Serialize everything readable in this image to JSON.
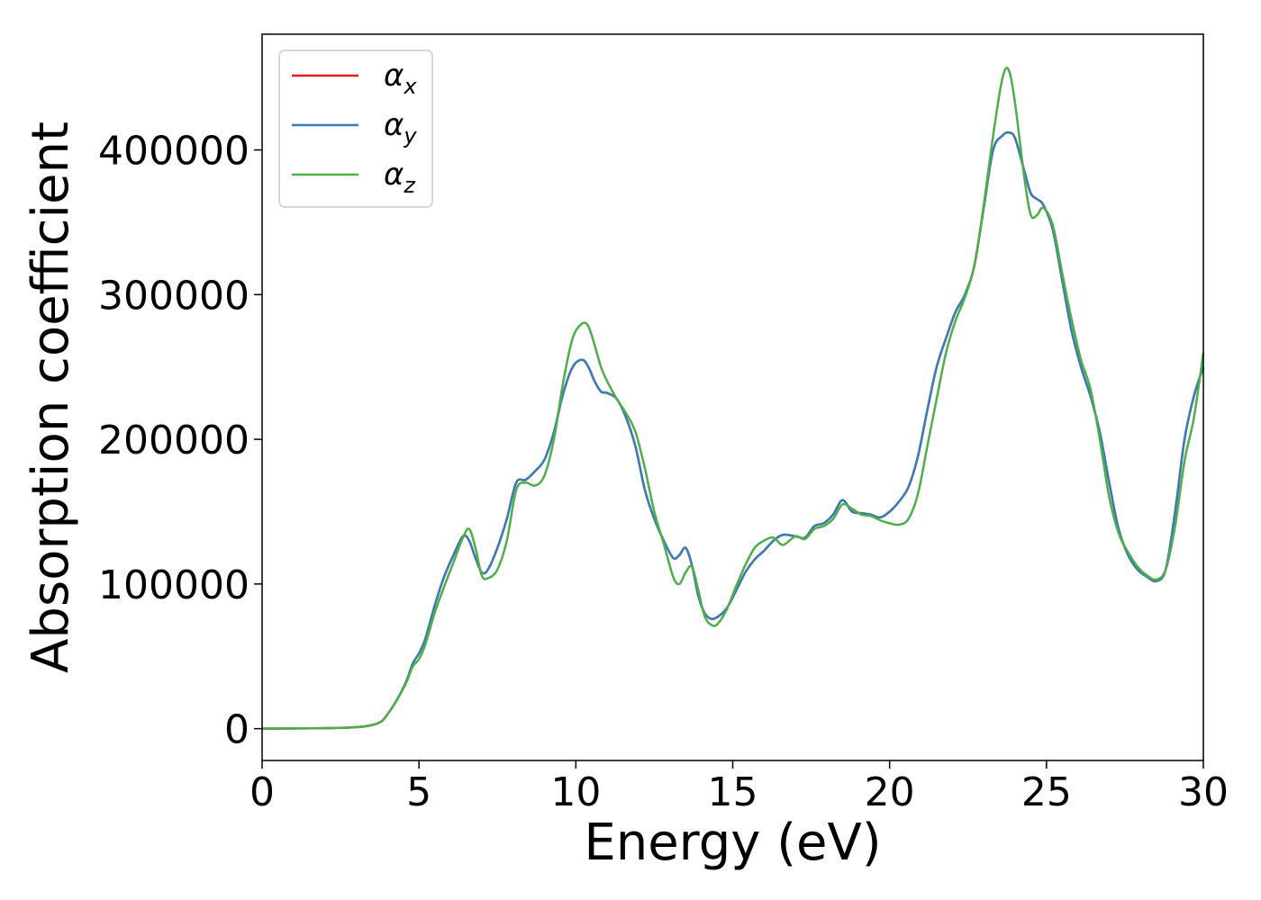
{
  "chart_data": {
    "type": "line",
    "title": "",
    "xlabel": "Energy (eV)",
    "ylabel": "Absorption coefficient",
    "xlim": [
      0,
      30
    ],
    "ylim": [
      -22000,
      480000
    ],
    "xticks": [
      0,
      5,
      10,
      15,
      20,
      25,
      30
    ],
    "yticks": [
      0,
      100000,
      200000,
      300000,
      400000
    ],
    "grid": false,
    "legend_position": "top-left",
    "series": [
      {
        "name": "α",
        "name_subscript": "x",
        "color": "#e41a1c",
        "x": [
          0,
          2,
          3,
          3.5,
          3.8,
          4.0,
          4.3,
          4.6,
          4.8,
          5.0,
          5.2,
          5.5,
          5.8,
          6.1,
          6.4,
          6.6,
          6.8,
          7.0,
          7.2,
          7.5,
          7.8,
          8.1,
          8.4,
          8.7,
          9.0,
          9.3,
          9.6,
          9.9,
          10.2,
          10.4,
          10.6,
          10.8,
          11.0,
          11.3,
          11.6,
          11.9,
          12.2,
          12.5,
          12.8,
          13.1,
          13.3,
          13.5,
          13.7,
          13.9,
          14.1,
          14.3,
          14.5,
          14.8,
          15.1,
          15.4,
          15.7,
          16.0,
          16.3,
          16.6,
          17.0,
          17.3,
          17.6,
          17.9,
          18.2,
          18.5,
          18.8,
          19.1,
          19.4,
          19.7,
          20.0,
          20.3,
          20.6,
          20.9,
          21.2,
          21.5,
          21.8,
          22.1,
          22.4,
          22.7,
          23.0,
          23.3,
          23.6,
          23.8,
          24.0,
          24.3,
          24.5,
          24.7,
          24.9,
          25.2,
          25.5,
          25.8,
          26.1,
          26.4,
          26.7,
          27.0,
          27.3,
          27.6,
          27.9,
          28.2,
          28.5,
          28.8,
          29.1,
          29.4,
          29.7,
          30.0
        ],
        "y": [
          0,
          300,
          1000,
          2500,
          5000,
          10000,
          20000,
          33000,
          45000,
          52000,
          62000,
          85000,
          105000,
          120000,
          133000,
          130000,
          118000,
          108000,
          110000,
          125000,
          145000,
          170000,
          172000,
          178000,
          186000,
          205000,
          232000,
          250000,
          255000,
          250000,
          240000,
          233000,
          232000,
          228000,
          215000,
          195000,
          165000,
          145000,
          130000,
          118000,
          120000,
          125000,
          113000,
          92000,
          80000,
          76000,
          77000,
          83000,
          95000,
          108000,
          117000,
          123000,
          130000,
          134000,
          133000,
          132000,
          140000,
          142000,
          148000,
          158000,
          150000,
          149000,
          148000,
          146000,
          150000,
          157000,
          167000,
          188000,
          220000,
          250000,
          270000,
          288000,
          300000,
          320000,
          360000,
          400000,
          410000,
          412000,
          408000,
          385000,
          370000,
          366000,
          362000,
          345000,
          310000,
          275000,
          250000,
          230000,
          205000,
          170000,
          138000,
          120000,
          110000,
          105000,
          102000,
          110000,
          150000,
          200000,
          230000,
          250000
        ]
      },
      {
        "name": "α",
        "name_subscript": "y",
        "color": "#377eb8",
        "x": [
          0,
          2,
          3,
          3.5,
          3.8,
          4.0,
          4.3,
          4.6,
          4.8,
          5.0,
          5.2,
          5.5,
          5.8,
          6.1,
          6.4,
          6.6,
          6.8,
          7.0,
          7.2,
          7.5,
          7.8,
          8.1,
          8.4,
          8.7,
          9.0,
          9.3,
          9.6,
          9.9,
          10.2,
          10.4,
          10.6,
          10.8,
          11.0,
          11.3,
          11.6,
          11.9,
          12.2,
          12.5,
          12.8,
          13.1,
          13.3,
          13.5,
          13.7,
          13.9,
          14.1,
          14.3,
          14.5,
          14.8,
          15.1,
          15.4,
          15.7,
          16.0,
          16.3,
          16.6,
          17.0,
          17.3,
          17.6,
          17.9,
          18.2,
          18.5,
          18.8,
          19.1,
          19.4,
          19.7,
          20.0,
          20.3,
          20.6,
          20.9,
          21.2,
          21.5,
          21.8,
          22.1,
          22.4,
          22.7,
          23.0,
          23.3,
          23.6,
          23.8,
          24.0,
          24.3,
          24.5,
          24.7,
          24.9,
          25.2,
          25.5,
          25.8,
          26.1,
          26.4,
          26.7,
          27.0,
          27.3,
          27.6,
          27.9,
          28.2,
          28.5,
          28.8,
          29.1,
          29.4,
          29.7,
          30.0
        ],
        "y": [
          0,
          300,
          1000,
          2500,
          5000,
          10000,
          20000,
          33000,
          45000,
          52000,
          62000,
          85000,
          105000,
          120000,
          133000,
          130000,
          118000,
          108000,
          110000,
          125000,
          145000,
          170000,
          172000,
          178000,
          186000,
          205000,
          232000,
          250000,
          255000,
          250000,
          240000,
          233000,
          232000,
          228000,
          215000,
          195000,
          165000,
          145000,
          130000,
          118000,
          120000,
          125000,
          113000,
          92000,
          80000,
          76000,
          77000,
          83000,
          95000,
          108000,
          117000,
          123000,
          130000,
          134000,
          133000,
          132000,
          140000,
          142000,
          148000,
          158000,
          150000,
          149000,
          148000,
          146000,
          150000,
          157000,
          167000,
          188000,
          220000,
          250000,
          270000,
          288000,
          300000,
          320000,
          360000,
          400000,
          410000,
          412000,
          408000,
          385000,
          370000,
          366000,
          362000,
          345000,
          310000,
          275000,
          250000,
          230000,
          205000,
          170000,
          138000,
          120000,
          110000,
          105000,
          102000,
          110000,
          150000,
          200000,
          230000,
          250000
        ]
      },
      {
        "name": "α",
        "name_subscript": "z",
        "color": "#4daf4a",
        "x": [
          0,
          2,
          3,
          3.5,
          3.8,
          4.0,
          4.3,
          4.6,
          4.8,
          5.0,
          5.2,
          5.5,
          5.8,
          6.1,
          6.4,
          6.6,
          6.8,
          7.0,
          7.2,
          7.5,
          7.8,
          8.1,
          8.4,
          8.7,
          9.0,
          9.3,
          9.6,
          9.9,
          10.2,
          10.4,
          10.6,
          10.8,
          11.0,
          11.3,
          11.6,
          11.9,
          12.2,
          12.5,
          12.8,
          13.1,
          13.3,
          13.5,
          13.7,
          13.9,
          14.1,
          14.3,
          14.5,
          14.8,
          15.1,
          15.4,
          15.7,
          16.0,
          16.3,
          16.6,
          17.0,
          17.3,
          17.6,
          17.9,
          18.2,
          18.5,
          18.8,
          19.1,
          19.4,
          19.7,
          20.0,
          20.3,
          20.6,
          20.9,
          21.2,
          21.5,
          21.8,
          22.1,
          22.4,
          22.7,
          23.0,
          23.3,
          23.6,
          23.8,
          24.0,
          24.3,
          24.5,
          24.7,
          24.9,
          25.2,
          25.5,
          25.8,
          26.1,
          26.4,
          26.7,
          27.0,
          27.3,
          27.6,
          27.9,
          28.2,
          28.5,
          28.8,
          29.1,
          29.4,
          29.7,
          30.0
        ],
        "y": [
          0,
          300,
          1000,
          2500,
          5000,
          10000,
          20000,
          32000,
          43000,
          48000,
          58000,
          80000,
          98000,
          115000,
          132000,
          138000,
          125000,
          106000,
          104000,
          110000,
          130000,
          165000,
          170000,
          168000,
          175000,
          200000,
          240000,
          270000,
          280000,
          278000,
          265000,
          250000,
          240000,
          228000,
          218000,
          205000,
          180000,
          150000,
          128000,
          105000,
          100000,
          108000,
          112000,
          96000,
          78000,
          72000,
          72000,
          82000,
          98000,
          113000,
          125000,
          130000,
          132000,
          127000,
          133000,
          131000,
          138000,
          140000,
          145000,
          155000,
          152000,
          148000,
          147000,
          144000,
          142000,
          141000,
          145000,
          162000,
          195000,
          228000,
          260000,
          282000,
          298000,
          320000,
          362000,
          410000,
          450000,
          455000,
          432000,
          380000,
          355000,
          355000,
          360000,
          348000,
          315000,
          283000,
          255000,
          235000,
          200000,
          160000,
          135000,
          122000,
          112000,
          106000,
          103000,
          110000,
          140000,
          185000,
          215000,
          260000
        ]
      }
    ]
  }
}
